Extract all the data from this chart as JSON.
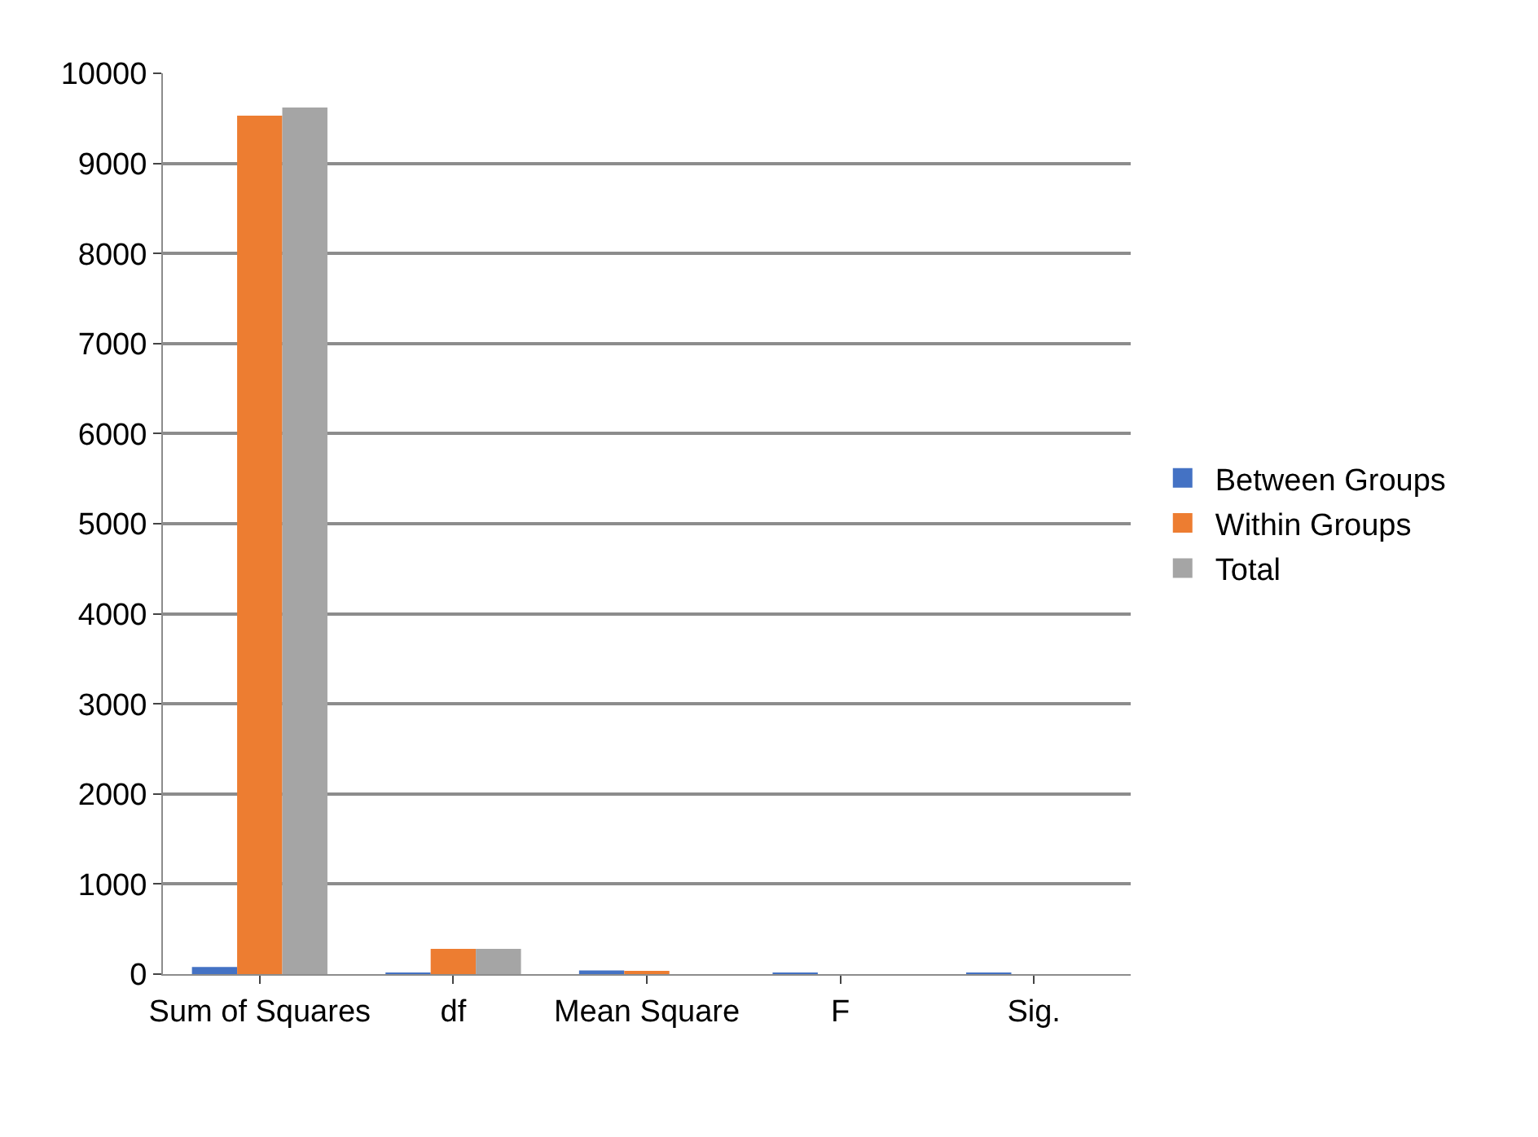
{
  "chart_data": {
    "type": "bar",
    "categories": [
      "Sum of Squares",
      "df",
      "Mean Square",
      "F",
      "Sig."
    ],
    "series": [
      {
        "name": "Between Groups",
        "color": "#4472c4",
        "values": [
          80,
          2,
          40,
          1,
          0.4
        ]
      },
      {
        "name": "Within Groups",
        "color": "#ed7d31",
        "values": [
          9530,
          280,
          30,
          null,
          null
        ]
      },
      {
        "name": "Total",
        "color": "#a5a5a5",
        "values": [
          9620,
          280,
          null,
          null,
          null
        ]
      }
    ],
    "ylim": [
      0,
      10000
    ],
    "yticks": [
      0,
      1000,
      2000,
      3000,
      4000,
      5000,
      6000,
      7000,
      8000,
      9000,
      10000
    ],
    "grid": "y",
    "legend": "right"
  }
}
